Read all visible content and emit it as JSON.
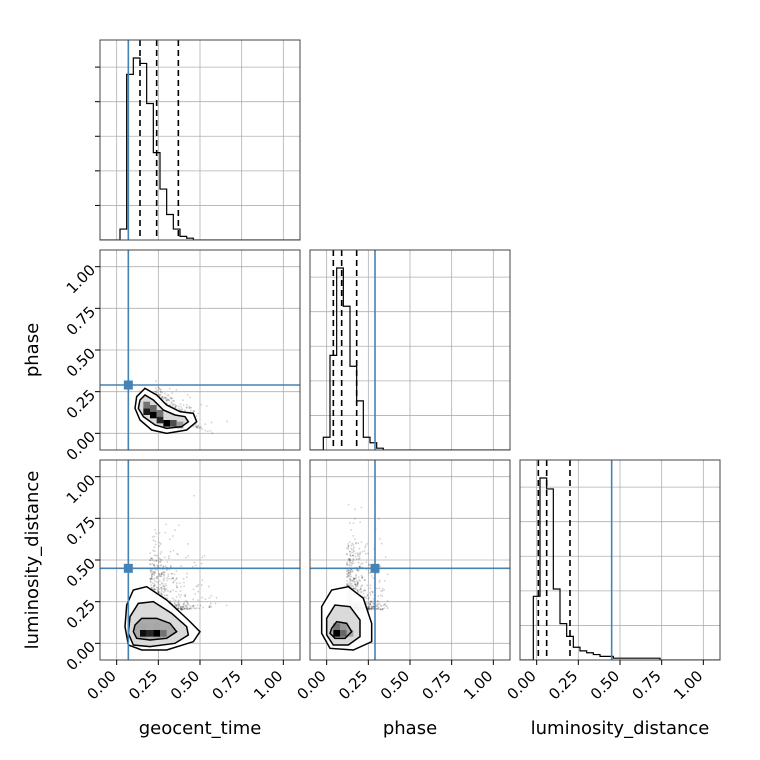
{
  "chart_data": {
    "type": "corner",
    "parameters": [
      "geocent_time",
      "phase",
      "luminosity_distance"
    ],
    "axis_labels": {
      "geocent_time": "geocent_time",
      "phase": "phase",
      "luminosity_distance": "luminosity_distance"
    },
    "range": [
      -0.1,
      1.1
    ],
    "ticks": [
      0.0,
      0.25,
      0.5,
      0.75,
      1.0
    ],
    "tick_labels": [
      "0.00",
      "0.25",
      "0.50",
      "0.75",
      "1.00"
    ],
    "truths": {
      "geocent_time": 0.07,
      "phase": 0.29,
      "luminosity_distance": 0.45
    },
    "truth_color": "#4682b4",
    "quantiles": {
      "geocent_time": [
        0.14,
        0.24,
        0.37
      ],
      "phase": [
        0.04,
        0.09,
        0.18
      ],
      "luminosity_distance": [
        0.01,
        0.06,
        0.2
      ]
    },
    "histograms": {
      "geocent_time": {
        "bin_start": -0.1,
        "bin_width": 0.04,
        "counts": [
          0,
          0,
          0,
          0.06,
          0.91,
          1.0,
          0.97,
          0.75,
          0.48,
          0.28,
          0.14,
          0.06,
          0.02,
          0.01,
          0,
          0,
          0,
          0,
          0,
          0,
          0,
          0,
          0,
          0,
          0,
          0,
          0,
          0,
          0,
          0
        ]
      },
      "phase": {
        "bin_start": -0.1,
        "bin_width": 0.04,
        "counts": [
          0,
          0,
          0.07,
          0.52,
          1.0,
          0.79,
          0.46,
          0.27,
          0.07,
          0.04,
          0.01,
          0,
          0,
          0,
          0,
          0,
          0,
          0,
          0,
          0,
          0,
          0,
          0,
          0,
          0,
          0,
          0,
          0,
          0,
          0
        ]
      },
      "luminosity_distance": {
        "bin_start": -0.1,
        "bin_width": 0.04,
        "counts": [
          0,
          0,
          0.35,
          1.0,
          0.94,
          0.39,
          0.2,
          0.13,
          0.07,
          0.05,
          0.04,
          0.03,
          0.02,
          0.02,
          0.01,
          0.01,
          0.01,
          0.01,
          0.01,
          0.01,
          0.01,
          0,
          0,
          0,
          0,
          0,
          0,
          0,
          0,
          0
        ]
      }
    },
    "pairs": [
      {
        "x": "geocent_time",
        "y": "phase",
        "scatter": {
          "cx": 0.23,
          "cy": 0.12,
          "sx": 0.09,
          "sy": 0.07,
          "slope": -0.35,
          "n": 650,
          "xmin": 0.04,
          "xmax": 0.75,
          "ymin": 0.0,
          "ymax": 0.45
        },
        "density": [
          {
            "x": 0.18,
            "y": 0.13,
            "w": 0.04,
            "h": 0.04,
            "v": 0.9
          },
          {
            "x": 0.22,
            "y": 0.11,
            "w": 0.04,
            "h": 0.04,
            "v": 1.0
          },
          {
            "x": 0.26,
            "y": 0.08,
            "w": 0.04,
            "h": 0.04,
            "v": 0.85
          },
          {
            "x": 0.3,
            "y": 0.06,
            "w": 0.04,
            "h": 0.04,
            "v": 1.0
          },
          {
            "x": 0.34,
            "y": 0.06,
            "w": 0.04,
            "h": 0.04,
            "v": 0.7
          },
          {
            "x": 0.18,
            "y": 0.17,
            "w": 0.04,
            "h": 0.04,
            "v": 0.55
          },
          {
            "x": 0.22,
            "y": 0.15,
            "w": 0.04,
            "h": 0.04,
            "v": 0.6
          },
          {
            "x": 0.26,
            "y": 0.12,
            "w": 0.04,
            "h": 0.04,
            "v": 0.55
          },
          {
            "x": 0.38,
            "y": 0.05,
            "w": 0.04,
            "h": 0.04,
            "v": 0.4
          }
        ],
        "contours": [
          [
            [
              0.14,
              0.2
            ],
            [
              0.17,
              0.23
            ],
            [
              0.22,
              0.2
            ],
            [
              0.28,
              0.14
            ],
            [
              0.35,
              0.11
            ],
            [
              0.41,
              0.1
            ],
            [
              0.43,
              0.07
            ],
            [
              0.39,
              0.04
            ],
            [
              0.3,
              0.03
            ],
            [
              0.23,
              0.05
            ],
            [
              0.16,
              0.1
            ],
            [
              0.13,
              0.15
            ]
          ],
          [
            [
              0.12,
              0.22
            ],
            [
              0.17,
              0.27
            ],
            [
              0.24,
              0.23
            ],
            [
              0.3,
              0.17
            ],
            [
              0.38,
              0.13
            ],
            [
              0.46,
              0.12
            ],
            [
              0.48,
              0.07
            ],
            [
              0.42,
              0.02
            ],
            [
              0.3,
              0.0
            ],
            [
              0.21,
              0.02
            ],
            [
              0.14,
              0.08
            ],
            [
              0.11,
              0.15
            ]
          ]
        ]
      },
      {
        "x": "geocent_time",
        "y": "luminosity_distance",
        "scatter": {
          "cx": 0.2,
          "cy": 0.18,
          "sx": 0.1,
          "sy": 0.18,
          "slope": 0.1,
          "n": 900,
          "xmin": 0.03,
          "xmax": 0.7,
          "ymin": 0.0,
          "ymax": 1.05
        },
        "density": [
          {
            "x": 0.16,
            "y": 0.06,
            "w": 0.04,
            "h": 0.04,
            "v": 0.95
          },
          {
            "x": 0.2,
            "y": 0.06,
            "w": 0.04,
            "h": 0.04,
            "v": 0.85
          },
          {
            "x": 0.24,
            "y": 0.06,
            "w": 0.04,
            "h": 0.04,
            "v": 1.0
          },
          {
            "x": 0.28,
            "y": 0.06,
            "w": 0.04,
            "h": 0.04,
            "v": 0.55
          },
          {
            "x": 0.16,
            "y": 0.1,
            "w": 0.04,
            "h": 0.04,
            "v": 0.35
          },
          {
            "x": 0.24,
            "y": 0.1,
            "w": 0.04,
            "h": 0.04,
            "v": 0.35
          }
        ],
        "contours": [
          [
            [
              0.11,
              0.11
            ],
            [
              0.15,
              0.15
            ],
            [
              0.24,
              0.15
            ],
            [
              0.32,
              0.12
            ],
            [
              0.36,
              0.07
            ],
            [
              0.3,
              0.03
            ],
            [
              0.2,
              0.02
            ],
            [
              0.12,
              0.03
            ],
            [
              0.1,
              0.07
            ]
          ],
          [
            [
              0.08,
              0.16
            ],
            [
              0.13,
              0.24
            ],
            [
              0.22,
              0.25
            ],
            [
              0.33,
              0.18
            ],
            [
              0.42,
              0.1
            ],
            [
              0.43,
              0.05
            ],
            [
              0.35,
              0.0
            ],
            [
              0.2,
              -0.02
            ],
            [
              0.1,
              -0.01
            ],
            [
              0.07,
              0.06
            ]
          ],
          [
            [
              0.06,
              0.23
            ],
            [
              0.1,
              0.32
            ],
            [
              0.18,
              0.34
            ],
            [
              0.3,
              0.26
            ],
            [
              0.43,
              0.14
            ],
            [
              0.5,
              0.07
            ],
            [
              0.46,
              0.01
            ],
            [
              0.3,
              -0.04
            ],
            [
              0.15,
              -0.04
            ],
            [
              0.07,
              -0.01
            ],
            [
              0.05,
              0.1
            ]
          ]
        ]
      },
      {
        "x": "phase",
        "y": "luminosity_distance",
        "scatter": {
          "cx": 0.12,
          "cy": 0.2,
          "sx": 0.08,
          "sy": 0.2,
          "slope": 0.0,
          "n": 900,
          "xmin": 0.0,
          "xmax": 0.37,
          "ymin": 0.0,
          "ymax": 1.05
        },
        "density": [
          {
            "x": 0.06,
            "y": 0.06,
            "w": 0.04,
            "h": 0.04,
            "v": 1.0
          },
          {
            "x": 0.1,
            "y": 0.06,
            "w": 0.04,
            "h": 0.04,
            "v": 0.6
          },
          {
            "x": 0.06,
            "y": 0.1,
            "w": 0.04,
            "h": 0.04,
            "v": 0.55
          },
          {
            "x": 0.1,
            "y": 0.1,
            "w": 0.04,
            "h": 0.04,
            "v": 0.4
          },
          {
            "x": 0.14,
            "y": 0.06,
            "w": 0.04,
            "h": 0.04,
            "v": 0.35
          }
        ],
        "contours": [
          [
            [
              0.03,
              0.09
            ],
            [
              0.06,
              0.13
            ],
            [
              0.12,
              0.12
            ],
            [
              0.15,
              0.07
            ],
            [
              0.11,
              0.03
            ],
            [
              0.05,
              0.03
            ],
            [
              0.02,
              0.06
            ]
          ],
          [
            [
              0.0,
              0.15
            ],
            [
              0.05,
              0.23
            ],
            [
              0.14,
              0.22
            ],
            [
              0.2,
              0.14
            ],
            [
              0.2,
              0.04
            ],
            [
              0.13,
              -0.01
            ],
            [
              0.04,
              -0.01
            ],
            [
              0.0,
              0.05
            ]
          ],
          [
            [
              -0.03,
              0.22
            ],
            [
              0.03,
              0.32
            ],
            [
              0.13,
              0.34
            ],
            [
              0.22,
              0.27
            ],
            [
              0.27,
              0.12
            ],
            [
              0.27,
              0.01
            ],
            [
              0.16,
              -0.04
            ],
            [
              0.02,
              -0.03
            ],
            [
              -0.03,
              0.06
            ]
          ]
        ]
      }
    ]
  }
}
